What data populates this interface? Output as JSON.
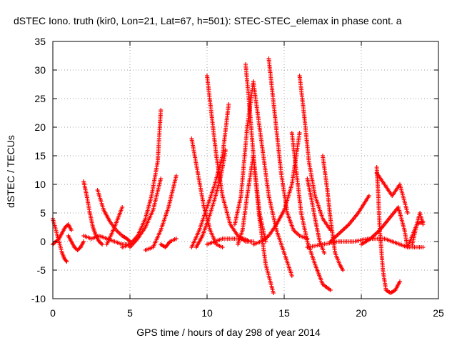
{
  "chart_data": {
    "type": "scatter",
    "title": "dSTEC Iono. truth (kir0, Lon=21, Lat=67, h=501): STEC-STEC_elemax in phase cont. a",
    "xlabel": "GPS time / hours of day 298 of year 2014",
    "ylabel": "dSTEC  / TECUs",
    "xlim": [
      0,
      25
    ],
    "ylim": [
      -10,
      35
    ],
    "xticks": [
      0,
      5,
      10,
      15,
      20,
      25
    ],
    "yticks": [
      -10,
      -5,
      0,
      5,
      10,
      15,
      20,
      25,
      30,
      35
    ],
    "grid": true,
    "marker": "+",
    "color": "#ff0000",
    "series": [
      {
        "x": [
          0.0,
          0.15,
          0.3,
          0.45,
          0.6,
          0.75,
          0.9
        ],
        "y": [
          4.0,
          2.5,
          1.0,
          -0.5,
          -2.0,
          -3.0,
          -3.5
        ]
      },
      {
        "x": [
          0.0,
          0.2,
          0.4,
          0.6,
          0.8,
          1.0,
          1.2
        ],
        "y": [
          -0.5,
          0.0,
          0.5,
          1.5,
          2.5,
          3.0,
          2.0
        ]
      },
      {
        "x": [
          1.0,
          1.2,
          1.4,
          1.6,
          1.8,
          2.0
        ],
        "y": [
          1.0,
          0.0,
          -1.0,
          -1.5,
          -1.0,
          0.0
        ]
      },
      {
        "x": [
          2.0,
          2.2,
          2.4,
          2.6,
          2.8,
          3.0,
          3.2
        ],
        "y": [
          10.5,
          8.0,
          5.0,
          2.5,
          1.0,
          0.0,
          -0.5
        ]
      },
      {
        "x": [
          2.9,
          3.3,
          3.7,
          4.1,
          4.5,
          4.8,
          5.0
        ],
        "y": [
          9.0,
          5.5,
          3.5,
          2.0,
          1.0,
          0.5,
          0.0
        ]
      },
      {
        "x": [
          2.0,
          2.5,
          3.0,
          3.5,
          4.0,
          4.5,
          5.0
        ],
        "y": [
          1.0,
          0.5,
          1.0,
          0.5,
          0.0,
          -0.5,
          -0.5
        ]
      },
      {
        "x": [
          3.5,
          4.0,
          4.5
        ],
        "y": [
          -0.5,
          2.5,
          6.0
        ]
      },
      {
        "x": [
          4.5,
          5.0,
          5.5,
          6.0,
          6.4,
          6.8,
          7.0
        ],
        "y": [
          -1.0,
          -0.5,
          1.0,
          4.0,
          8.0,
          14.0,
          23.0
        ]
      },
      {
        "x": [
          5.0,
          5.5,
          6.0,
          6.5,
          7.0
        ],
        "y": [
          -1.0,
          0.5,
          2.5,
          5.5,
          11.0
        ]
      },
      {
        "x": [
          6.0,
          6.5,
          7.0,
          7.5,
          8.0
        ],
        "y": [
          -1.5,
          -1.0,
          2.0,
          6.0,
          11.5
        ]
      },
      {
        "x": [
          7.0,
          7.3,
          7.6,
          8.0
        ],
        "y": [
          -0.5,
          -1.0,
          0.0,
          0.5
        ]
      },
      {
        "x": [
          9.0,
          9.4,
          9.8,
          10.2,
          10.6,
          11.0
        ],
        "y": [
          18.0,
          12.0,
          6.0,
          2.0,
          -0.5,
          -1.0
        ]
      },
      {
        "x": [
          9.0,
          9.5,
          10.0,
          10.5,
          11.0,
          11.4
        ],
        "y": [
          -1.0,
          2.0,
          6.0,
          10.0,
          15.0,
          24.0
        ]
      },
      {
        "x": [
          9.3,
          9.7,
          10.1,
          10.5,
          10.9,
          11.2
        ],
        "y": [
          -1.0,
          1.0,
          4.0,
          7.5,
          11.5,
          16.0
        ]
      },
      {
        "x": [
          10.0,
          10.3,
          10.6,
          11.0,
          11.5,
          12.0,
          12.5,
          13.0
        ],
        "y": [
          29.0,
          22.0,
          15.0,
          8.0,
          3.0,
          1.0,
          0.0,
          0.0
        ]
      },
      {
        "x": [
          10.0,
          11.0,
          12.0,
          12.4,
          12.8
        ],
        "y": [
          -0.5,
          0.5,
          0.5,
          0.5,
          0.0
        ]
      },
      {
        "x": [
          11.8,
          12.2,
          12.6,
          13.0,
          13.5,
          14.0,
          14.5,
          15.5
        ],
        "y": [
          3.0,
          8.0,
          20.0,
          28.0,
          18.0,
          8.0,
          2.0,
          -6.0
        ]
      },
      {
        "x": [
          12.0,
          12.3,
          12.6,
          13.0,
          13.4,
          13.8
        ],
        "y": [
          -0.5,
          2.0,
          8.0,
          15.0,
          5.0,
          0.0
        ]
      },
      {
        "x": [
          12.5,
          12.8,
          13.1,
          13.4,
          13.8,
          14.3
        ],
        "y": [
          31.0,
          22.0,
          12.0,
          4.0,
          -4.0,
          -9.0
        ]
      },
      {
        "x": [
          13.0,
          13.5,
          14.0,
          14.5,
          15.0,
          15.5,
          16.0
        ],
        "y": [
          -0.5,
          0.0,
          1.0,
          3.0,
          5.5,
          10.0,
          19.0
        ]
      },
      {
        "x": [
          14.0,
          14.4,
          14.8,
          15.2,
          15.6,
          16.0,
          16.5
        ],
        "y": [
          32.0,
          22.0,
          12.0,
          5.0,
          2.0,
          1.0,
          0.5
        ]
      },
      {
        "x": [
          15.5,
          15.8,
          16.1,
          16.5,
          17.0,
          17.5,
          18.0
        ],
        "y": [
          19.0,
          12.0,
          5.0,
          0.0,
          -4.0,
          -7.5,
          -8.5
        ]
      },
      {
        "x": [
          16.0,
          16.3,
          16.6,
          17.0,
          17.5,
          18.0
        ],
        "y": [
          29.0,
          22.0,
          14.0,
          8.0,
          4.0,
          2.0
        ]
      },
      {
        "x": [
          16.5,
          16.8,
          17.0,
          17.3,
          17.6
        ],
        "y": [
          11.0,
          7.0,
          4.0,
          0.0,
          -2.0
        ]
      },
      {
        "x": [
          17.5,
          17.8,
          18.0,
          18.3,
          18.6,
          18.8
        ],
        "y": [
          15.0,
          9.0,
          4.0,
          -2.0,
          -4.0,
          -5.0
        ]
      },
      {
        "x": [
          16.5,
          17.5,
          18.5,
          19.5,
          20.5,
          21.5,
          22.5,
          23.0,
          24.0
        ],
        "y": [
          -1.0,
          -0.5,
          0.0,
          0.0,
          0.5,
          0.5,
          -0.5,
          -1.0,
          -1.0
        ]
      },
      {
        "x": [
          18.0,
          18.6,
          19.2,
          19.8,
          20.5
        ],
        "y": [
          0.0,
          1.5,
          3.0,
          5.0,
          8.0
        ]
      },
      {
        "x": [
          20.0,
          20.6,
          21.2,
          21.8,
          22.4,
          22.8,
          23.0,
          23.6,
          24.0
        ],
        "y": [
          -0.5,
          0.5,
          2.0,
          4.0,
          6.0,
          2.0,
          -1.0,
          3.0,
          3.5
        ]
      },
      {
        "x": [
          21.0,
          21.1,
          21.2,
          21.4,
          21.6,
          21.9,
          22.2,
          22.5
        ],
        "y": [
          13.0,
          8.0,
          2.0,
          -5.0,
          -8.5,
          -9.0,
          -8.5,
          -7.0
        ]
      },
      {
        "x": [
          21.0,
          21.5,
          22.0,
          22.5,
          23.0
        ],
        "y": [
          12.0,
          10.0,
          8.0,
          10.0,
          5.0
        ]
      },
      {
        "x": [
          23.3,
          23.6,
          23.8,
          24.0
        ],
        "y": [
          -0.5,
          3.0,
          5.0,
          3.0
        ]
      }
    ]
  }
}
